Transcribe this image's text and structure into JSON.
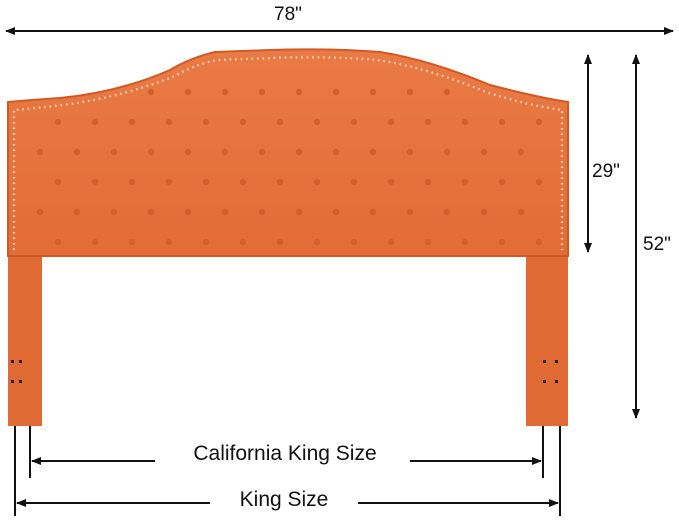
{
  "dimensions": {
    "width": "78\"",
    "panel_height": "29\"",
    "total_height": "52\"",
    "california_king": "California King Size",
    "king": "King Size"
  },
  "colors": {
    "fabric": "#e8733e",
    "fabric_dark": "#d35f2c",
    "nailhead": "#e9dcc8",
    "arrow": "#111111"
  }
}
